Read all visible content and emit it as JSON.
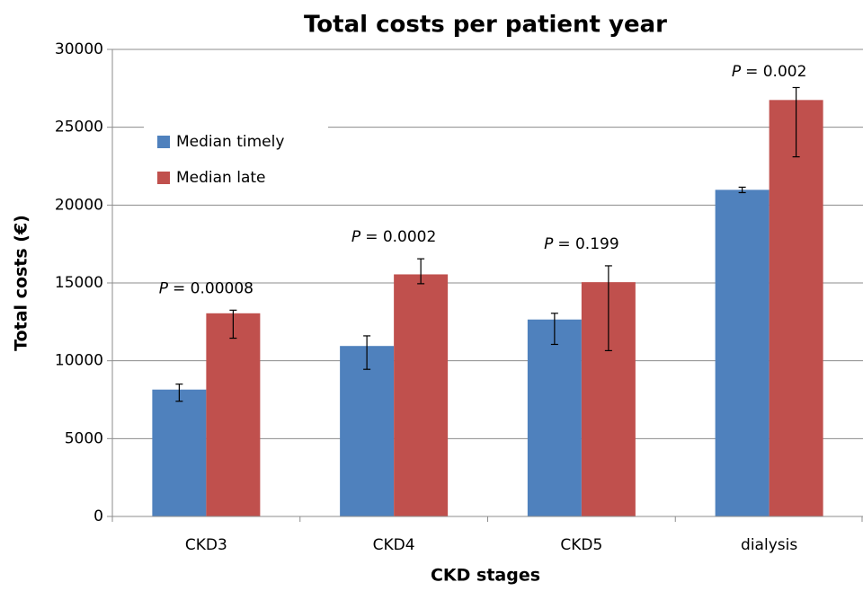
{
  "chart_data": {
    "type": "bar",
    "title": "Total costs per patient year",
    "x_label": "CKD stages",
    "y_label": "Total costs (€)",
    "categories": [
      "CKD3",
      "CKD4",
      "CKD5",
      "dialysis"
    ],
    "series": [
      {
        "name": "Median timely",
        "color": "#4f81bd",
        "values": [
          8150,
          10950,
          12650,
          20980
        ],
        "error_low": [
          7400,
          9450,
          11050,
          20800
        ],
        "error_high": [
          8500,
          11600,
          13050,
          21150
        ]
      },
      {
        "name": "Median late",
        "color": "#c0504d",
        "values": [
          13050,
          15550,
          15050,
          26750
        ],
        "error_low": [
          11450,
          14950,
          10650,
          23100
        ],
        "error_high": [
          13250,
          16550,
          16100,
          27550
        ]
      }
    ],
    "annotations": [
      {
        "variable": "P",
        "text": "= 0.00008"
      },
      {
        "variable": "P",
        "text": "= 0.0002"
      },
      {
        "variable": "P",
        "text": "= 0.199"
      },
      {
        "variable": "P",
        "text": "= 0.002"
      }
    ],
    "ylim": [
      0,
      30000
    ],
    "yticks": [
      0,
      5000,
      10000,
      15000,
      20000,
      25000,
      30000
    ],
    "grid": true
  }
}
